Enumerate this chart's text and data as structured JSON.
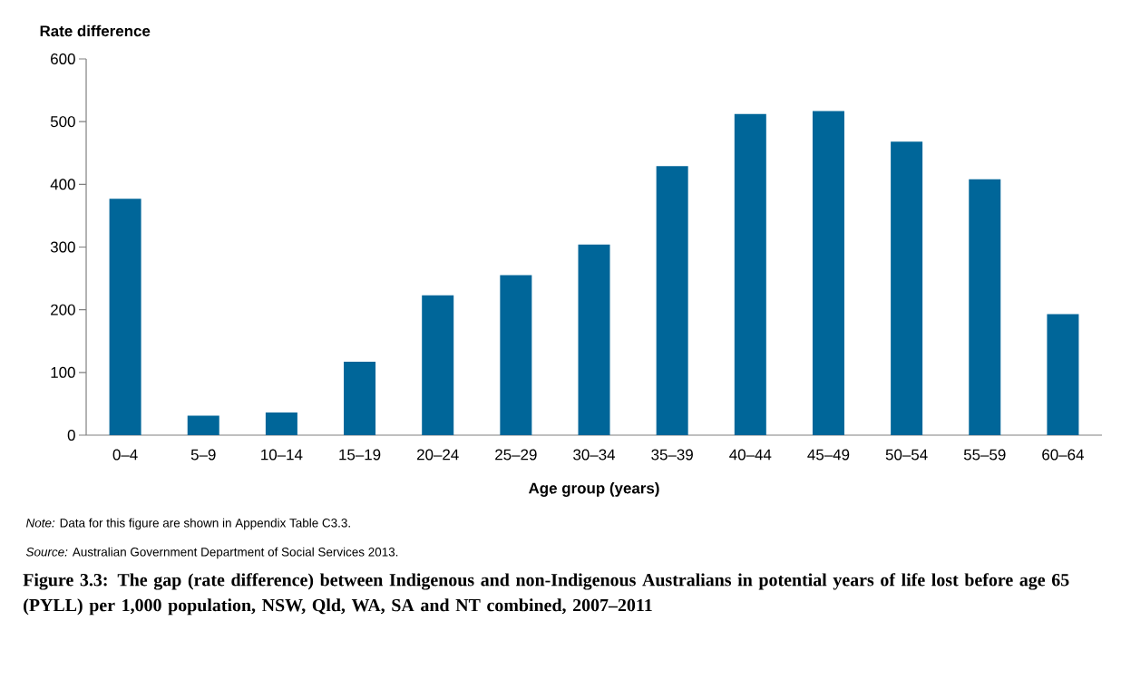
{
  "chart_data": {
    "type": "bar",
    "title": "Figure 3.3: The gap (rate difference) between Indigenous and non-Indigenous Australians in potential years of life lost before age 65 (PYLL) per 1,000 population, NSW, Qld, WA, SA and NT combined, 2007–2011",
    "ylabel": "Rate difference",
    "xlabel": "Age group (years)",
    "categories": [
      "0–4",
      "5–9",
      "10–14",
      "15–19",
      "20–24",
      "25–29",
      "30–34",
      "35–39",
      "40–44",
      "45–49",
      "50–54",
      "55–59",
      "60–64"
    ],
    "values": [
      377,
      31,
      36,
      117,
      223,
      255,
      304,
      429,
      512,
      517,
      468,
      408,
      193
    ],
    "color": "#006699",
    "ylim": [
      0,
      600
    ],
    "yticks": [
      0,
      100,
      200,
      300,
      400,
      500,
      600
    ],
    "annotations": [
      "*Note:* Data for this figure are shown in Appendix Table C3.3.",
      "*Source:* Australian Government Department of Social Services 2013."
    ]
  }
}
